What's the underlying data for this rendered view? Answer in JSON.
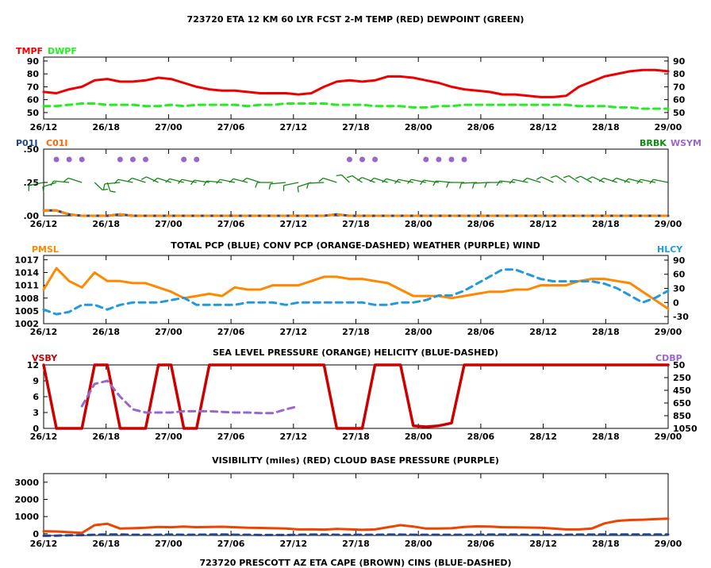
{
  "header": {
    "title": "723720  ETA 12 KM 60 LYR FCST 2-M TEMP (RED) DEWPOINT (GREEN)"
  },
  "footer": {
    "title": "723720 PRESCOTT AZ  ETA CAPE (BROWN) CINS (BLUE-DASHED)"
  },
  "x_labels": [
    "26/12",
    "26/18",
    "27/00",
    "27/06",
    "27/12",
    "27/18",
    "28/00",
    "28/06",
    "28/12",
    "28/18",
    "29/00"
  ],
  "colors": {
    "red": "#ee0000",
    "green": "#22ee22",
    "darkgreen": "#118811",
    "blue": "#2299dd",
    "orange": "#ff8800",
    "purple": "#9966cc",
    "darkred": "#cc0000",
    "navy": "#224488",
    "brown": "#ee4400"
  },
  "chart_data": [
    {
      "type": "line",
      "id": "temp",
      "left_label_1": "TMPF",
      "left_label_2": "DWPF",
      "left_ticks": [
        "90",
        "80",
        "70",
        "60",
        "50"
      ],
      "right_ticks": [
        "90",
        "80",
        "70",
        "60",
        "50"
      ],
      "ylim": [
        45,
        93
      ],
      "series": [
        {
          "name": "TMPF",
          "values": [
            66,
            65,
            68,
            70,
            75,
            76,
            74,
            74,
            75,
            77,
            76,
            73,
            70,
            68,
            67,
            67,
            66,
            65,
            65,
            65,
            64,
            65,
            70,
            74,
            75,
            74,
            75,
            78,
            78,
            77,
            75,
            73,
            70,
            68,
            67,
            66,
            64,
            64,
            63,
            62,
            62,
            63,
            70,
            74,
            78,
            80,
            82,
            83,
            83,
            82
          ]
        },
        {
          "name": "DWPF",
          "values": [
            55,
            55,
            56,
            57,
            57,
            56,
            56,
            56,
            55,
            55,
            56,
            55,
            56,
            56,
            56,
            56,
            55,
            56,
            56,
            57,
            57,
            57,
            57,
            56,
            56,
            56,
            55,
            55,
            55,
            54,
            54,
            55,
            55,
            56,
            56,
            56,
            56,
            56,
            56,
            56,
            56,
            56,
            55,
            55,
            55,
            54,
            54,
            53,
            53,
            53
          ]
        }
      ]
    },
    {
      "type": "line",
      "id": "precip",
      "left_label_1": "P01I",
      "left_label_2": "C01I",
      "right_label_1": "BRBK",
      "right_label_2": "WSYM",
      "left_ticks": [
        ".50",
        ".25",
        ".00"
      ],
      "ylim": [
        0,
        0.5
      ],
      "series": [
        {
          "name": "P01I",
          "values": [
            0.04,
            0.04,
            0.01,
            0,
            0,
            0,
            0.01,
            0,
            0,
            0,
            0,
            0,
            0,
            0,
            0,
            0,
            0,
            0,
            0,
            0,
            0,
            0,
            0,
            0.01,
            0,
            0,
            0,
            0,
            0,
            0,
            0,
            0,
            0,
            0,
            0,
            0,
            0,
            0,
            0,
            0,
            0,
            0,
            0,
            0,
            0,
            0,
            0,
            0,
            0,
            0
          ]
        },
        {
          "name": "C01I",
          "values": [
            0.04,
            0.04,
            0.01,
            0,
            0,
            0,
            0.01,
            0,
            0,
            0,
            0,
            0,
            0,
            0,
            0,
            0,
            0,
            0,
            0,
            0,
            0,
            0,
            0,
            0.01,
            0,
            0,
            0,
            0,
            0,
            0,
            0,
            0,
            0,
            0,
            0,
            0,
            0,
            0,
            0,
            0,
            0,
            0,
            0,
            0,
            0,
            0,
            0,
            0,
            0,
            0
          ]
        }
      ],
      "weather_dots_at": [
        1,
        2,
        3,
        6,
        7,
        8,
        11,
        12,
        24,
        25,
        26,
        30,
        31,
        32,
        33
      ],
      "wind_dir": [
        250,
        240,
        280,
        300,
        150,
        170,
        260,
        290,
        300,
        310,
        300,
        295,
        290,
        285,
        280,
        290,
        295,
        300,
        270,
        260,
        250,
        240,
        265,
        300,
        330,
        320,
        305,
        300,
        295,
        290,
        290,
        285,
        280,
        270,
        265,
        265,
        270,
        280,
        290,
        300,
        310,
        320,
        320,
        315,
        310,
        300,
        300,
        295,
        290,
        290
      ],
      "wind_mag": [
        20,
        18,
        14,
        10,
        12,
        18,
        22,
        22,
        22,
        20,
        20,
        20,
        22,
        22,
        22,
        20,
        20,
        18,
        18,
        22,
        25,
        25,
        22,
        20,
        18,
        18,
        20,
        20,
        22,
        22,
        22,
        24,
        24,
        24,
        22,
        22,
        22,
        24,
        24,
        26,
        26,
        24,
        22,
        20,
        18,
        18,
        16,
        15,
        14,
        14
      ]
    },
    {
      "type": "line",
      "id": "pressure",
      "title": "TOTAL PCP (BLUE) CONV PCP (ORANGE-DASHED) WEATHER (PURPLE) WIND",
      "left_label": "PMSL",
      "right_label": "HLCY",
      "left_ticks": [
        "1017",
        "1014",
        "1011",
        "1008",
        "1005",
        "1002"
      ],
      "right_ticks": [
        "90",
        "60",
        "30",
        "0",
        "-30"
      ],
      "ylim": [
        1002,
        1018
      ],
      "y2lim": [
        -45,
        100
      ],
      "series": [
        {
          "name": "PMSL",
          "values": [
            1010,
            1015,
            1012,
            1010.5,
            1014,
            1012,
            1012,
            1011.5,
            1011.5,
            1010.5,
            1009.5,
            1008,
            1008.5,
            1009,
            1008.5,
            1010.5,
            1010,
            1010,
            1011,
            1011,
            1011,
            1012,
            1013,
            1013,
            1012.5,
            1012.5,
            1012,
            1011.5,
            1010,
            1008.5,
            1008.5,
            1008.5,
            1008,
            1008.5,
            1009,
            1009.5,
            1009.5,
            1010,
            1010,
            1011,
            1011,
            1011,
            1012,
            1012.5,
            1012.5,
            1012,
            1011.5,
            1009.5,
            1007.5,
            1005.5
          ]
        },
        {
          "name": "HLCY",
          "values": [
            -15,
            -25,
            -20,
            -5,
            -5,
            -15,
            -5,
            0,
            0,
            0,
            5,
            10,
            -5,
            -5,
            -5,
            -5,
            0,
            0,
            0,
            -5,
            0,
            0,
            0,
            0,
            0,
            0,
            -5,
            -5,
            0,
            0,
            5,
            15,
            15,
            25,
            40,
            55,
            70,
            70,
            60,
            50,
            45,
            45,
            45,
            45,
            40,
            30,
            15,
            0,
            10,
            25
          ]
        }
      ]
    },
    {
      "type": "line",
      "id": "visibility",
      "title": "SEA LEVEL PRESSURE (ORANGE) HELICITY (BLUE-DASHED)",
      "left_label": "VSBY",
      "right_label": "CDBP",
      "left_ticks": [
        "12",
        "9",
        "6",
        "3",
        "0"
      ],
      "right_ticks": [
        "50",
        "250",
        "450",
        "650",
        "850",
        "1050"
      ],
      "ylim": [
        0,
        12
      ],
      "y2lim": [
        50,
        1050
      ],
      "series": [
        {
          "name": "VSBY",
          "values": [
            12,
            0,
            0,
            0,
            12,
            12,
            0,
            0,
            0,
            12,
            12,
            0,
            0,
            12,
            12,
            12,
            12,
            12,
            12,
            12,
            12,
            12,
            12,
            0,
            0,
            0,
            12,
            12,
            12,
            0.5,
            0.3,
            0.5,
            1,
            12,
            12,
            12,
            12,
            12,
            12,
            12,
            12,
            12,
            12,
            12,
            12,
            12,
            12,
            12,
            12,
            12
          ]
        },
        {
          "name": "CDBP",
          "values": [
            null,
            null,
            null,
            700,
            350,
            300,
            550,
            750,
            800,
            800,
            800,
            780,
            780,
            780,
            790,
            800,
            800,
            810,
            810,
            750,
            700,
            null,
            null,
            null,
            null,
            null,
            null,
            null,
            null,
            null,
            null,
            null,
            null,
            null,
            null,
            null,
            null,
            null,
            null,
            null,
            null,
            null,
            null,
            null,
            null,
            null,
            null,
            null,
            null,
            null
          ]
        }
      ]
    },
    {
      "type": "line",
      "id": "cape",
      "title": "VISIBILITY (miles) (RED)    CLOUD BASE PRESSURE (PURPLE)",
      "left_ticks": [
        "3000",
        "2000",
        "1000",
        "0"
      ],
      "ylim": [
        -100,
        3500
      ],
      "series": [
        {
          "name": "CAPE",
          "values": [
            150,
            130,
            90,
            50,
            500,
            580,
            300,
            320,
            350,
            400,
            380,
            420,
            380,
            400,
            410,
            380,
            350,
            340,
            320,
            300,
            250,
            260,
            240,
            280,
            260,
            230,
            250,
            380,
            500,
            420,
            300,
            300,
            320,
            400,
            430,
            420,
            380,
            370,
            360,
            350,
            300,
            250,
            250,
            300,
            600,
            750,
            800,
            820,
            850,
            880
          ]
        },
        {
          "name": "CINS",
          "values": [
            -120,
            -110,
            -90,
            -80,
            -60,
            -40,
            -40,
            -60,
            -60,
            -60,
            -50,
            -60,
            -60,
            -50,
            -40,
            -60,
            -60,
            -70,
            -70,
            -70,
            -60,
            -50,
            -50,
            -60,
            -60,
            -60,
            -60,
            -50,
            -50,
            -60,
            -60,
            -60,
            -60,
            -60,
            -60,
            -50,
            -50,
            -50,
            -60,
            -60,
            -60,
            -60,
            -50,
            -50,
            -40,
            -40,
            -40,
            -40,
            -40,
            -40
          ]
        }
      ]
    }
  ]
}
